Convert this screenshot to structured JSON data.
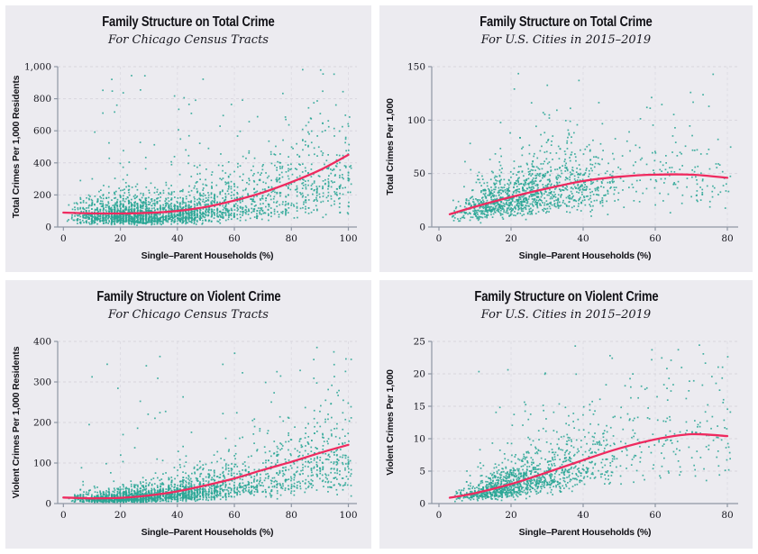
{
  "page": {
    "background": "#ffffff",
    "panel_background": "#ecebf0"
  },
  "colors": {
    "point": "#2aa695",
    "trend": "#ef2a5f",
    "grid_h": "#d7d5dd",
    "grid_v": "#dedce3",
    "axis": "#8e96a4",
    "tick_text": "#16161e",
    "label_text": "#111116"
  },
  "chart_data": [
    {
      "type": "scatter",
      "title": "Family Structure on Total Crime",
      "subtitle": "For Chicago Census Tracts",
      "xlabel": "Single–Parent Households (%)",
      "ylabel": "Total Crimes Per 1,000 Residents",
      "xlim": [
        -2,
        103
      ],
      "ylim": [
        0,
        1000
      ],
      "xticks": [
        0,
        20,
        40,
        60,
        80,
        100
      ],
      "yticks": [
        0,
        200,
        400,
        600,
        800,
        1000
      ],
      "trend": [
        [
          0,
          90
        ],
        [
          10,
          85
        ],
        [
          20,
          84
        ],
        [
          30,
          88
        ],
        [
          40,
          100
        ],
        [
          50,
          125
        ],
        [
          60,
          165
        ],
        [
          70,
          215
        ],
        [
          80,
          280
        ],
        [
          90,
          355
        ],
        [
          100,
          450
        ]
      ],
      "scatter": {
        "seed": 3,
        "n": 2600,
        "mix": 0.66,
        "tri": [
          1,
          20,
          60
        ],
        "uni": [
          40,
          101
        ],
        "quantize": 1.0,
        "sigma": 0.58,
        "median_factor": 0.82,
        "floor": 6,
        "outlier_frac": 0.013,
        "outlier_range": [
          300,
          960
        ]
      }
    },
    {
      "type": "scatter",
      "title": "Family Structure on Total Crime",
      "subtitle": "For U.S. Cities in 2015–2019",
      "xlabel": "Single–Parent Households (%)",
      "ylabel": "Total Crimes Per 1,000",
      "xlim": [
        -2,
        83
      ],
      "ylim": [
        0,
        150
      ],
      "xticks": [
        0,
        20,
        40,
        60,
        80
      ],
      "yticks": [
        0,
        50,
        100,
        150
      ],
      "trend": [
        [
          3,
          12
        ],
        [
          10,
          19
        ],
        [
          20,
          28
        ],
        [
          30,
          36
        ],
        [
          40,
          43
        ],
        [
          50,
          47
        ],
        [
          60,
          49
        ],
        [
          70,
          49
        ],
        [
          80,
          46
        ]
      ],
      "scatter": {
        "seed": 7,
        "n": 1400,
        "mix": 0.82,
        "tri": [
          3,
          17,
          50
        ],
        "uni": [
          35,
          81
        ],
        "quantize": 0,
        "sigma": 0.45,
        "median_factor": 0.95,
        "floor": 1.5,
        "outlier_frac": 0.006,
        "outlier_range": [
          65,
          108
        ]
      }
    },
    {
      "type": "scatter",
      "title": "Family Structure on Violent Crime",
      "subtitle": "For Chicago Census Tracts",
      "xlabel": "Single–Parent Households (%)",
      "ylabel": "Violent Crimes Per 1,000 Residents",
      "xlim": [
        -2,
        103
      ],
      "ylim": [
        0,
        400
      ],
      "xticks": [
        0,
        20,
        40,
        60,
        80,
        100
      ],
      "yticks": [
        0,
        100,
        200,
        300,
        400
      ],
      "trend": [
        [
          0,
          15
        ],
        [
          10,
          13
        ],
        [
          20,
          14
        ],
        [
          30,
          20
        ],
        [
          40,
          30
        ],
        [
          50,
          45
        ],
        [
          60,
          62
        ],
        [
          70,
          83
        ],
        [
          80,
          103
        ],
        [
          90,
          125
        ],
        [
          100,
          145
        ]
      ],
      "scatter": {
        "seed": 5,
        "n": 2600,
        "mix": 0.66,
        "tri": [
          1,
          20,
          60
        ],
        "uni": [
          40,
          101
        ],
        "quantize": 1.0,
        "sigma": 0.62,
        "median_factor": 0.8,
        "floor": 3,
        "outlier_frac": 0.012,
        "outlier_range": [
          100,
          380
        ]
      }
    },
    {
      "type": "scatter",
      "title": "Family Structure on Violent Crime",
      "subtitle": "For U.S. Cities in 2015–2019",
      "xlabel": "Single–Parent Households (%)",
      "ylabel": "Violent Crimes Per 1,000",
      "xlim": [
        -2,
        83
      ],
      "ylim": [
        0,
        25
      ],
      "xticks": [
        0,
        20,
        40,
        60,
        80
      ],
      "yticks": [
        0,
        5,
        10,
        15,
        20,
        25
      ],
      "trend": [
        [
          3,
          0.9
        ],
        [
          10,
          1.6
        ],
        [
          20,
          3.0
        ],
        [
          30,
          4.8
        ],
        [
          40,
          6.7
        ],
        [
          50,
          8.5
        ],
        [
          60,
          9.9
        ],
        [
          70,
          10.7
        ],
        [
          80,
          10.4
        ]
      ],
      "scatter": {
        "seed": 9,
        "n": 1400,
        "mix": 0.82,
        "tri": [
          3,
          17,
          50
        ],
        "uni": [
          35,
          81
        ],
        "quantize": 0,
        "sigma": 0.5,
        "median_factor": 0.95,
        "floor": 0.3,
        "outlier_frac": 0.006,
        "outlier_range": [
          13,
          21
        ]
      }
    }
  ]
}
